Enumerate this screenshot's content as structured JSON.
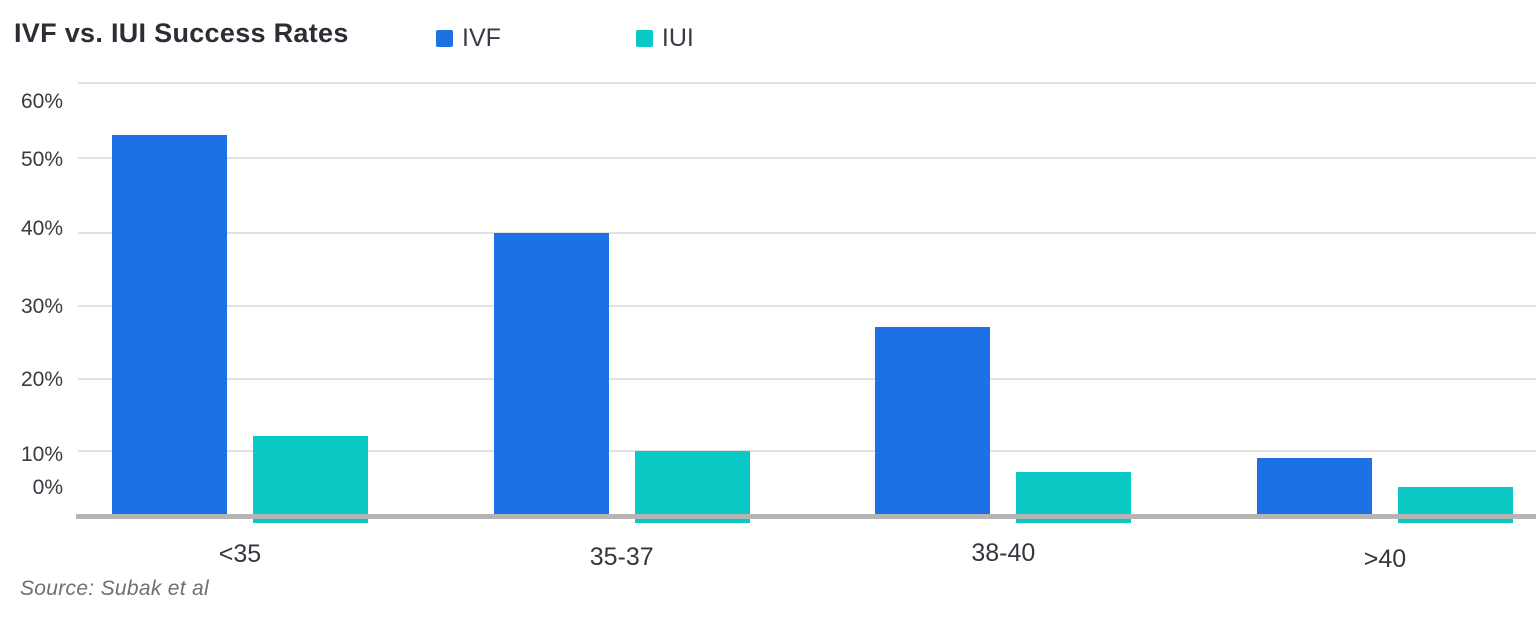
{
  "chart_data": {
    "type": "bar",
    "title": "IVF vs. IUI Success Rates",
    "categories": [
      "<35",
      "35-37",
      "38-40",
      ">40"
    ],
    "series": [
      {
        "name": "IVF",
        "color": "#1d71e2",
        "values": [
          53.5,
          40,
          27,
          9
        ]
      },
      {
        "name": "IUI",
        "color": "#0ac8c4",
        "values": [
          12,
          10,
          7,
          5
        ]
      }
    ],
    "xlabel": "",
    "ylabel": "",
    "ylim": [
      0,
      60
    ],
    "yticks": {
      "labels": [
        "60%",
        "50%",
        "40%",
        "30%",
        "20%",
        "10%",
        "0%"
      ],
      "values": [
        60,
        50,
        40,
        30,
        20,
        10,
        0
      ]
    },
    "grid": true,
    "legend_position": "top",
    "source": "Source: Subak et al",
    "colors": {
      "grid": "#e2e2e2",
      "axis": "#b5b5b5",
      "title_text": "#2d2d35",
      "tick_text": "#3a3a42",
      "source_text": "#6e6e77",
      "background": "#ffffff"
    }
  }
}
